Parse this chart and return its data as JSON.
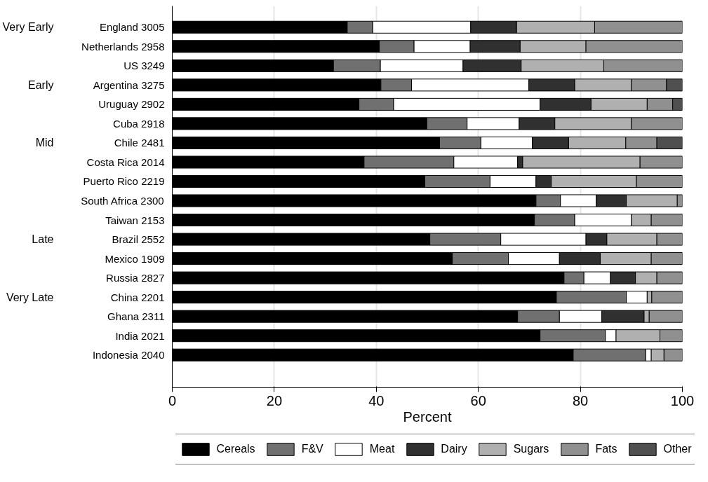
{
  "chart_data": {
    "type": "bar",
    "orientation": "horizontal",
    "stacked": true,
    "categories": [
      "England 3005",
      "Netherlands 2958",
      "US 3249",
      "Argentina 3275",
      "Uruguay 2902",
      "Cuba 2918",
      "Chile 2481",
      "Costa Rica 2014",
      "Puerto Rico 2219",
      "South Africa 2300",
      "Taiwan 2153",
      "Brazil 2552",
      "Mexico 1909",
      "Russia 2827",
      "China 2201",
      "Ghana 2311",
      "India 2021",
      "Indonesia 2040"
    ],
    "series": [
      {
        "name": "Cereals",
        "color": "#000000",
        "values": [
          34.3,
          40.6,
          31.6,
          40.9,
          36.6,
          49.9,
          52.4,
          37.6,
          49.5,
          71.3,
          71.0,
          50.5,
          54.9,
          76.8,
          75.3,
          67.7,
          72.1,
          78.6
        ]
      },
      {
        "name": "F&V",
        "color": "#707070",
        "values": [
          5.0,
          6.8,
          9.2,
          6.0,
          6.8,
          7.9,
          8.1,
          17.6,
          12.8,
          4.8,
          7.9,
          13.9,
          11.0,
          3.9,
          13.7,
          8.2,
          12.8,
          14.2
        ]
      },
      {
        "name": "Meat",
        "color": "#ffffff",
        "values": [
          19.2,
          11.0,
          16.2,
          23.0,
          28.7,
          10.2,
          10.1,
          12.5,
          9.0,
          7.0,
          11.1,
          16.7,
          10.0,
          5.2,
          4.1,
          8.3,
          2.1,
          1.1
        ]
      },
      {
        "name": "Dairy",
        "color": "#303030",
        "values": [
          9.0,
          9.8,
          11.4,
          9.0,
          10.0,
          7.0,
          7.1,
          1.0,
          3.0,
          5.9,
          null,
          4.1,
          8.0,
          4.9,
          null,
          8.3,
          null,
          null
        ]
      },
      {
        "name": "Sugars",
        "color": "#b0b0b0",
        "values": [
          15.3,
          12.9,
          16.2,
          11.1,
          11.0,
          15.0,
          11.2,
          23.0,
          16.7,
          10.0,
          3.9,
          9.8,
          10.0,
          4.2,
          0.9,
          1.0,
          8.6,
          2.5
        ]
      },
      {
        "name": "Fats",
        "color": "#909090",
        "values": [
          17.2,
          18.9,
          15.4,
          6.9,
          5.0,
          10.0,
          6.1,
          8.3,
          9.0,
          1.0,
          6.1,
          5.0,
          6.1,
          5.0,
          6.0,
          6.5,
          4.4,
          3.6
        ]
      },
      {
        "name": "Other",
        "color": "#505050",
        "values": [
          null,
          null,
          null,
          3.1,
          1.9,
          null,
          5.0,
          null,
          null,
          null,
          null,
          null,
          null,
          null,
          null,
          null,
          null,
          null
        ]
      }
    ],
    "xlabel": "Percent",
    "xlim": [
      0,
      100
    ],
    "xticks": [
      0,
      20,
      40,
      60,
      80,
      100
    ],
    "grid": "x",
    "legend": "bottom",
    "annotations": [
      "Very Early",
      "Early",
      "Mid",
      "Late",
      "Very Late"
    ]
  }
}
